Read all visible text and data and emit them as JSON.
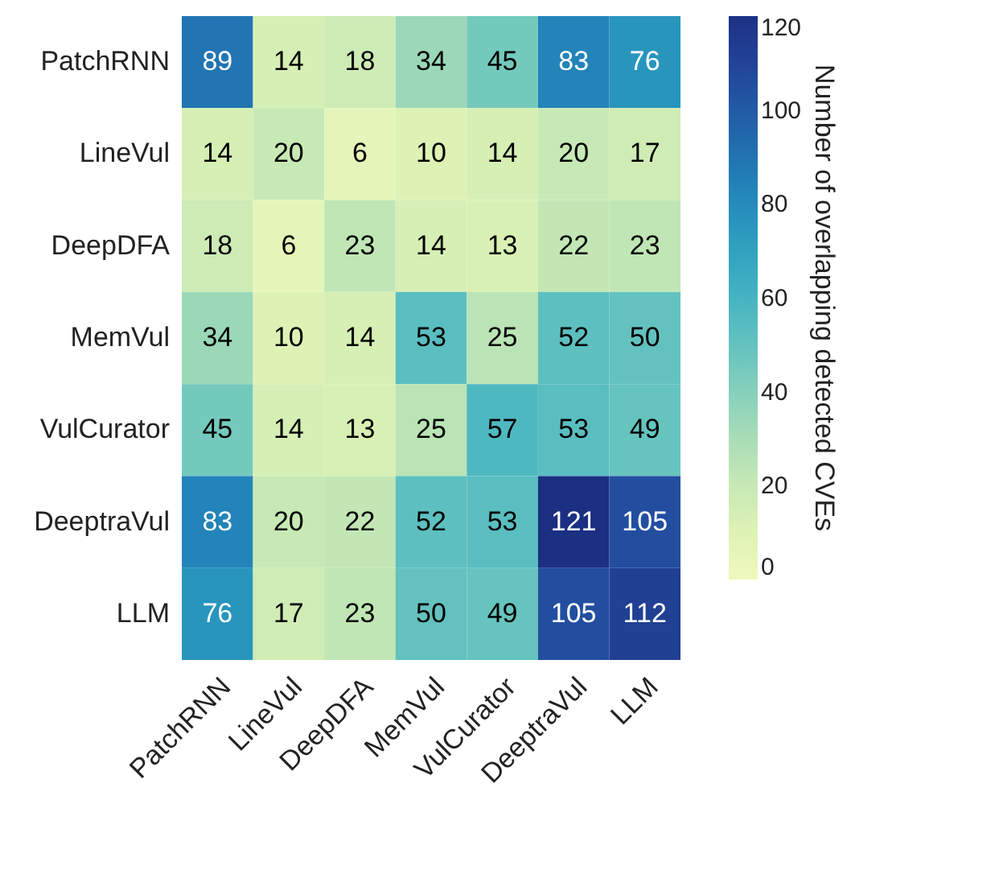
{
  "chart_data": {
    "type": "heatmap",
    "categories": [
      "PatchRNN",
      "LineVul",
      "DeepDFA",
      "MemVul",
      "VulCurator",
      "DeeptraVul",
      "LLM"
    ],
    "y_categories": [
      "PatchRNN",
      "LineVul",
      "DeepDFA",
      "MemVul",
      "VulCurator",
      "DeeptraVul",
      "LLM"
    ],
    "cells": [
      [
        89,
        14,
        18,
        34,
        45,
        83,
        76
      ],
      [
        14,
        20,
        6,
        10,
        14,
        20,
        17
      ],
      [
        18,
        6,
        23,
        14,
        13,
        22,
        23
      ],
      [
        34,
        10,
        14,
        53,
        25,
        52,
        50
      ],
      [
        45,
        14,
        13,
        25,
        57,
        53,
        49
      ],
      [
        83,
        20,
        22,
        52,
        53,
        121,
        105
      ],
      [
        76,
        17,
        23,
        50,
        49,
        105,
        112
      ]
    ],
    "clabel": "Number of overlapping detected CVEs",
    "clim": [
      0,
      120
    ],
    "cticks": [
      0,
      20,
      40,
      60,
      80,
      100,
      120
    ],
    "data_labels": true
  }
}
